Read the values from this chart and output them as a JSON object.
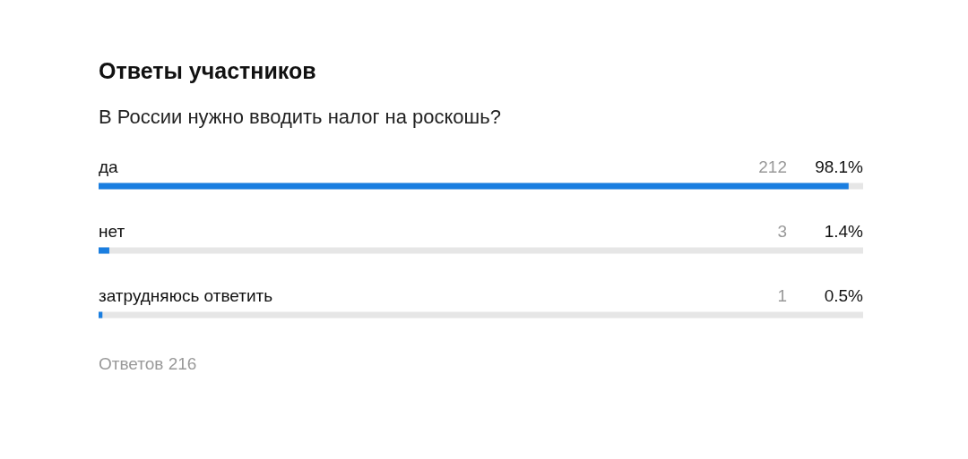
{
  "chart_data": {
    "type": "bar",
    "orientation": "horizontal",
    "title": "Ответы участников",
    "subtitle": "В России нужно вводить налог на роскошь?",
    "categories": [
      "да",
      "нет",
      "затрудняюсь ответить"
    ],
    "values": [
      98.1,
      1.4,
      0.5
    ],
    "value_labels": [
      "98.1%",
      "1.4%",
      "0.5%"
    ],
    "color": "#1a7ee0",
    "xlim": [
      0,
      100
    ],
    "tick_labels": false,
    "annotations": [
      "212",
      "3",
      "1",
      "Ответов 216"
    ]
  }
}
